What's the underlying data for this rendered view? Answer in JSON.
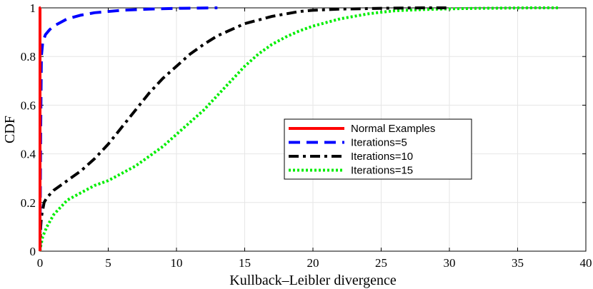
{
  "chart_data": {
    "type": "line",
    "title": "",
    "xlabel": "Kullback–Leibler divergence",
    "ylabel": "CDF",
    "xlim": [
      0,
      40
    ],
    "ylim": [
      0,
      1
    ],
    "x_ticks": [
      0,
      5,
      10,
      15,
      20,
      25,
      30,
      35,
      40
    ],
    "y_ticks": [
      0,
      0.2,
      0.4,
      0.6,
      0.8,
      1
    ],
    "x_tick_labels": [
      "0",
      "5",
      "10",
      "15",
      "20",
      "25",
      "30",
      "35",
      "40"
    ],
    "y_tick_labels": [
      "0",
      "0.2",
      "0.4",
      "0.6",
      "0.8",
      "1"
    ],
    "grid": true,
    "legend_position": "center-right",
    "series": [
      {
        "name": "Normal Examples",
        "color": "#ff0000",
        "style": "solid",
        "x": [
          0.0,
          0.0,
          0.05
        ],
        "y": [
          0.0,
          1.0,
          1.0
        ]
      },
      {
        "name": "Iterations=5",
        "color": "#0000ff",
        "style": "dashed",
        "x": [
          0.0,
          0.05,
          0.1,
          0.2,
          0.4,
          0.7,
          1.0,
          1.5,
          2.0,
          3.0,
          4.0,
          6.0,
          8.0,
          10.0,
          13.0
        ],
        "y": [
          0.0,
          0.5,
          0.8,
          0.86,
          0.89,
          0.91,
          0.925,
          0.94,
          0.955,
          0.97,
          0.98,
          0.99,
          0.995,
          0.998,
          1.0
        ]
      },
      {
        "name": "Iterations=10",
        "color": "#000000",
        "style": "dashdot",
        "x": [
          0.0,
          0.05,
          0.1,
          0.3,
          0.5,
          1.0,
          2.0,
          3.0,
          4.0,
          5.0,
          6.0,
          7.0,
          8.0,
          9.0,
          10.0,
          11.0,
          12.0,
          13.0,
          14.0,
          15.0,
          16.0,
          17.0,
          18.0,
          19.0,
          20.0,
          22.0,
          24.0,
          26.0,
          28.0,
          30.0
        ],
        "y": [
          0.0,
          0.1,
          0.14,
          0.2,
          0.22,
          0.25,
          0.29,
          0.33,
          0.38,
          0.44,
          0.51,
          0.58,
          0.65,
          0.71,
          0.76,
          0.81,
          0.85,
          0.885,
          0.91,
          0.935,
          0.95,
          0.965,
          0.975,
          0.985,
          0.99,
          0.995,
          0.997,
          0.999,
          1.0,
          1.0
        ]
      },
      {
        "name": "Iterations=15",
        "color": "#00ee00",
        "style": "dotted",
        "x": [
          0.0,
          0.05,
          0.2,
          0.5,
          1.0,
          1.5,
          2.0,
          3.0,
          4.0,
          5.0,
          6.0,
          7.0,
          8.0,
          9.0,
          10.0,
          11.0,
          12.0,
          13.0,
          14.0,
          15.0,
          16.0,
          17.0,
          18.0,
          19.0,
          20.0,
          21.0,
          22.0,
          23.0,
          24.0,
          25.0,
          26.0,
          28.0,
          30.0,
          32.0,
          34.0,
          36.0,
          38.0
        ],
        "y": [
          0.0,
          0.02,
          0.06,
          0.1,
          0.15,
          0.18,
          0.21,
          0.24,
          0.27,
          0.29,
          0.32,
          0.35,
          0.39,
          0.43,
          0.48,
          0.53,
          0.58,
          0.64,
          0.7,
          0.76,
          0.81,
          0.85,
          0.88,
          0.905,
          0.925,
          0.94,
          0.955,
          0.965,
          0.975,
          0.982,
          0.988,
          0.993,
          0.996,
          0.998,
          0.999,
          1.0,
          1.0
        ]
      }
    ]
  }
}
